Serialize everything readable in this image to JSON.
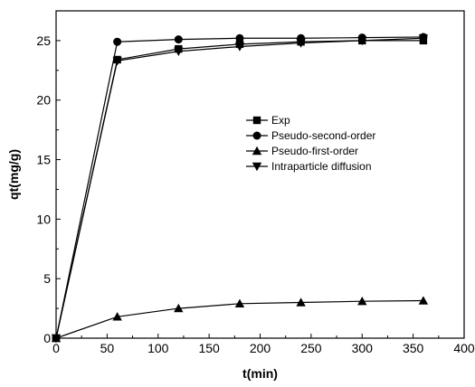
{
  "chart_data": {
    "type": "line",
    "xlabel": "t(min)",
    "ylabel": "qt(mg/g)",
    "xlim": [
      0,
      400
    ],
    "ylim": [
      0,
      27.5
    ],
    "xticks": [
      0,
      50,
      100,
      150,
      200,
      250,
      300,
      350,
      400
    ],
    "yticks": [
      0,
      5,
      10,
      15,
      20,
      25
    ],
    "grid": false,
    "legend_position": "right-middle",
    "series": [
      {
        "name": "Exp",
        "marker": "square",
        "x": [
          0,
          60,
          120,
          180,
          240,
          300,
          360
        ],
        "y": [
          0,
          23.4,
          24.3,
          24.7,
          24.9,
          25.0,
          25.0
        ]
      },
      {
        "name": "Pseudo-second-order",
        "marker": "circle",
        "x": [
          0,
          60,
          120,
          180,
          240,
          300,
          360
        ],
        "y": [
          0,
          24.9,
          25.1,
          25.2,
          25.2,
          25.25,
          25.3
        ]
      },
      {
        "name": "Pseudo-first-order",
        "marker": "triangle-up",
        "x": [
          0,
          60,
          120,
          180,
          240,
          300,
          360
        ],
        "y": [
          0,
          1.8,
          2.5,
          2.9,
          3.0,
          3.1,
          3.15
        ]
      },
      {
        "name": "Intraparticle diffusion",
        "marker": "triangle-down",
        "x": [
          0,
          60,
          120,
          180,
          240,
          300,
          360
        ],
        "y": [
          0,
          23.3,
          24.1,
          24.5,
          24.8,
          25.0,
          25.2
        ]
      }
    ]
  }
}
